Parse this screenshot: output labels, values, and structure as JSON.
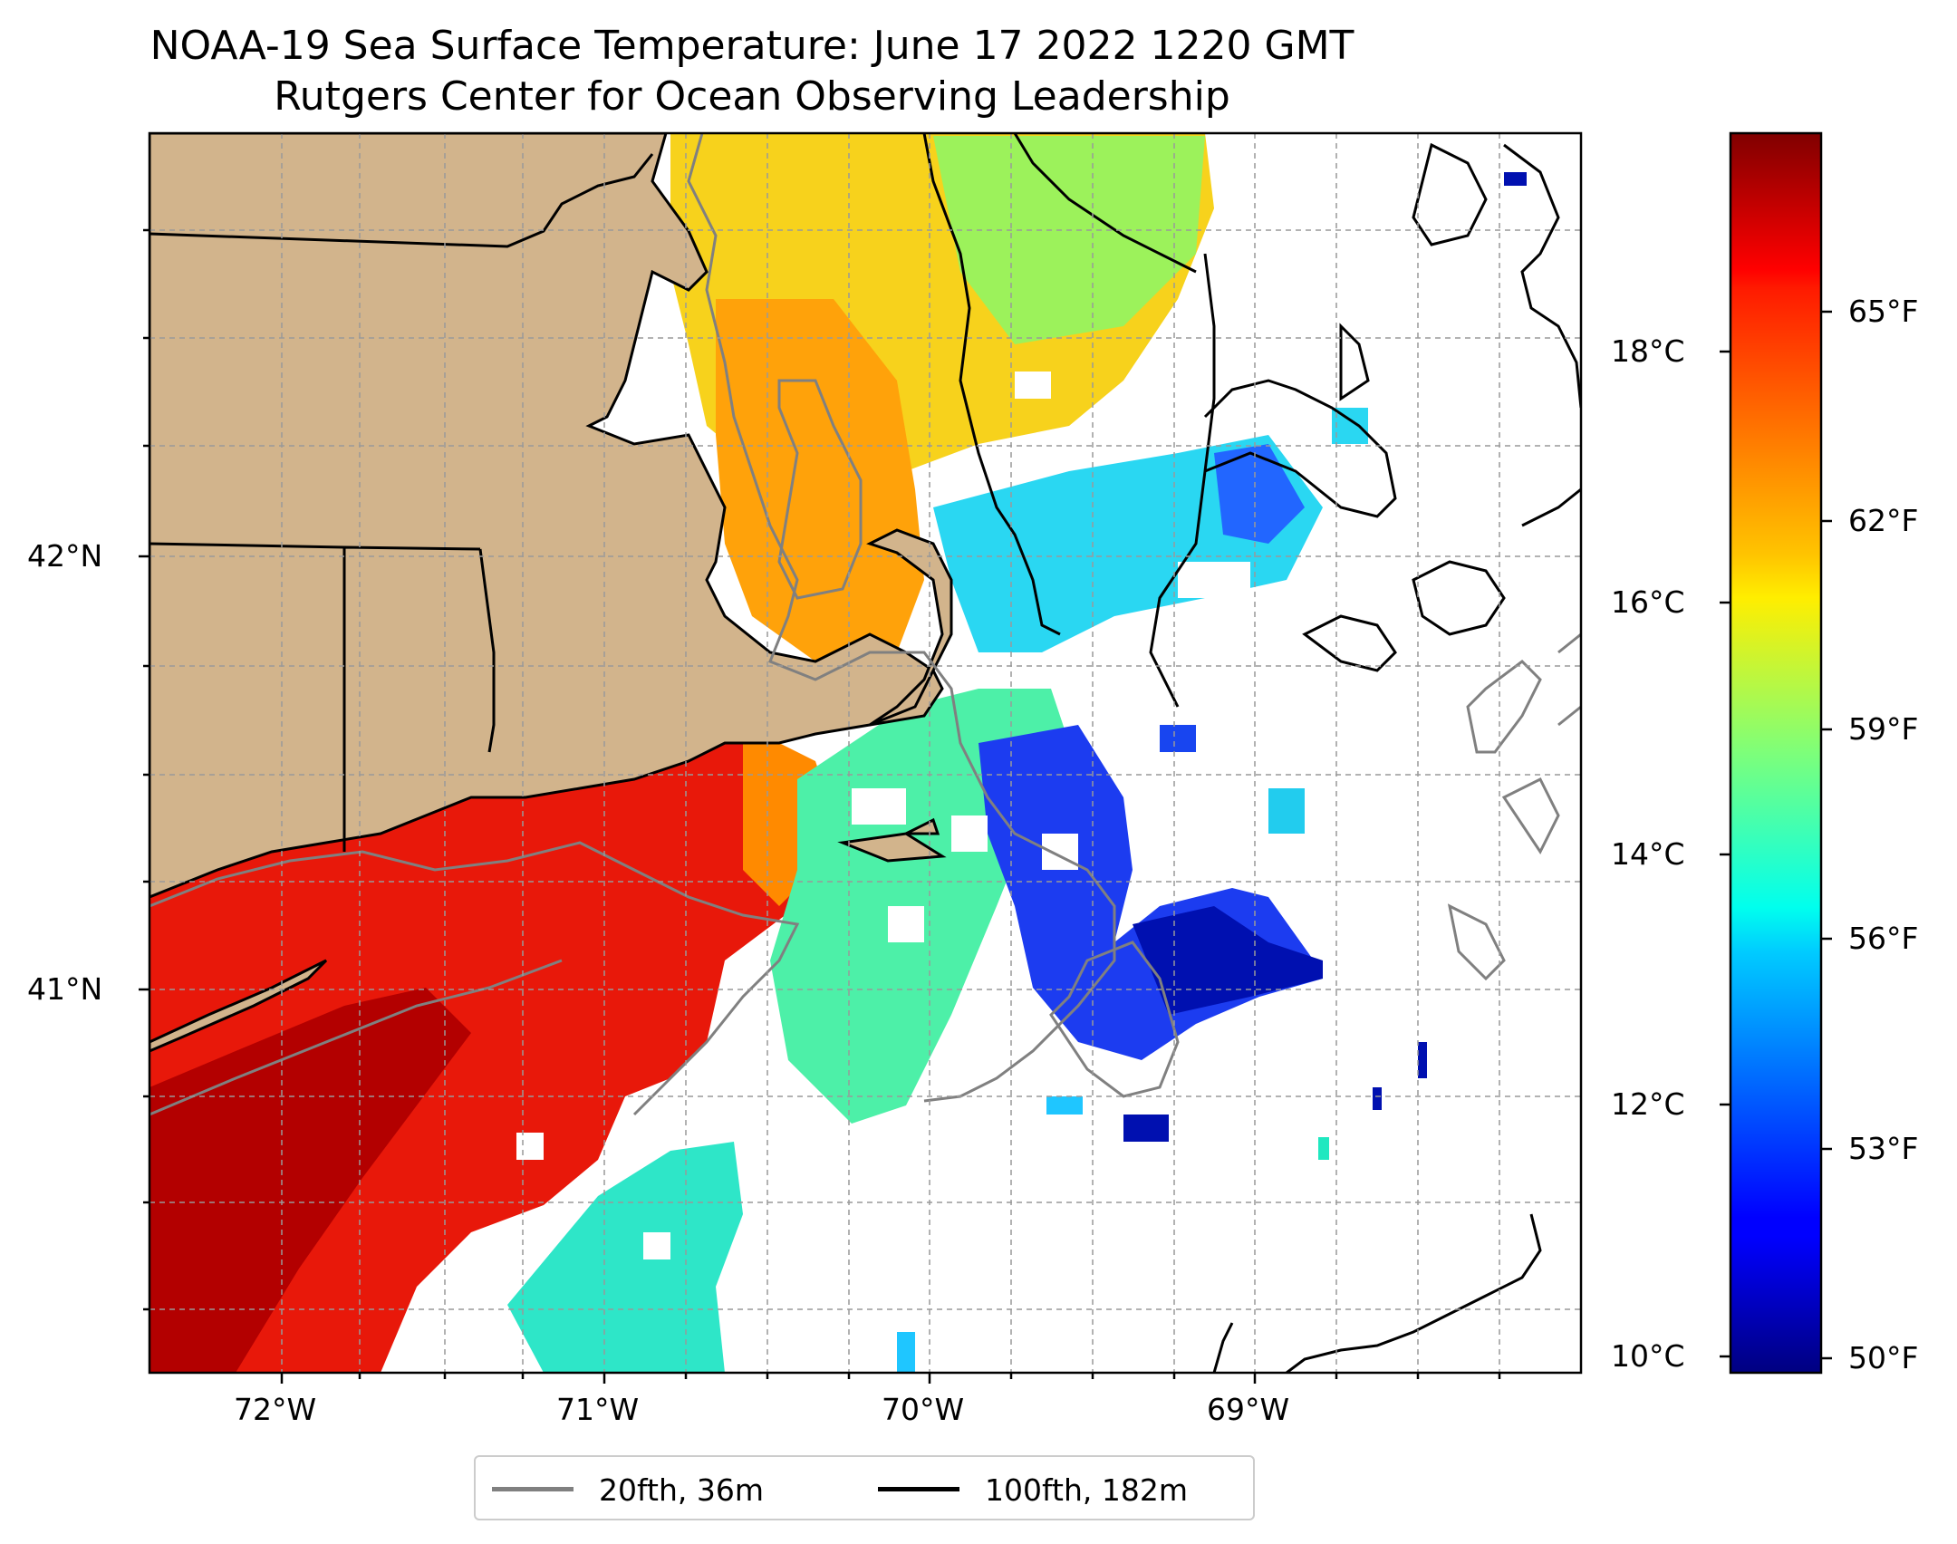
{
  "title": {
    "line1": "NOAA-19 Sea Surface Temperature: June 17 2022 1220 GMT",
    "line2": "Rutgers Center for Ocean Observing Leadership"
  },
  "map": {
    "x_ticks": [
      "72°W",
      "71°W",
      "70°W",
      "69°W"
    ],
    "y_ticks": [
      "42°N",
      "41°N"
    ],
    "land_color": "#D2B48C",
    "gridlines": true,
    "colormap": "jet"
  },
  "colorbar": {
    "celsius_ticks": [
      "10°C",
      "12°C",
      "14°C",
      "16°C",
      "18°C"
    ],
    "fahrenheit_ticks": [
      "50°F",
      "53°F",
      "56°F",
      "59°F",
      "62°F",
      "65°F"
    ],
    "celsius_range": [
      9.8,
      19.8
    ]
  },
  "legend": {
    "items": [
      {
        "label": "20fth, 36m",
        "color": "#808080"
      },
      {
        "label": "100fth, 182m",
        "color": "#000000"
      }
    ]
  }
}
